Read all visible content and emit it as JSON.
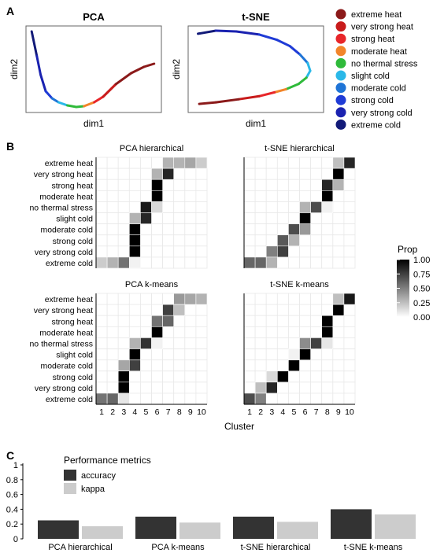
{
  "panels": {
    "a": "A",
    "b": "B",
    "c": "C"
  },
  "colors": {
    "extreme heat": "#8b1a1a",
    "very strong heat": "#c81b1b",
    "strong heat": "#e8262a",
    "moderate heat": "#f2852a",
    "no thermal stress": "#2fba3a",
    "slight cold": "#2ab8e8",
    "moderate cold": "#1f74d6",
    "strong cold": "#1f3bd6",
    "very strong cold": "#1a22b0",
    "extreme cold": "#121a78"
  },
  "stress_categories": [
    "extreme heat",
    "very strong heat",
    "strong heat",
    "moderate heat",
    "no thermal stress",
    "slight cold",
    "moderate cold",
    "strong cold",
    "very strong cold",
    "extreme cold"
  ],
  "chart_data": [
    {
      "type": "line",
      "title": "PCA",
      "xlabel": "dim1",
      "ylabel": "dim2",
      "note": "curve colored by thermal stress category",
      "points": [
        {
          "x": 0.02,
          "y": 0.97,
          "cat": "extreme cold"
        },
        {
          "x": 0.06,
          "y": 0.66,
          "cat": "extreme cold"
        },
        {
          "x": 0.09,
          "y": 0.42,
          "cat": "very strong cold"
        },
        {
          "x": 0.13,
          "y": 0.21,
          "cat": "very strong cold"
        },
        {
          "x": 0.18,
          "y": 0.12,
          "cat": "strong cold"
        },
        {
          "x": 0.23,
          "y": 0.07,
          "cat": "moderate cold"
        },
        {
          "x": 0.3,
          "y": 0.03,
          "cat": "slight cold"
        },
        {
          "x": 0.37,
          "y": 0.01,
          "cat": "no thermal stress"
        },
        {
          "x": 0.43,
          "y": 0.02,
          "cat": "no thermal stress"
        },
        {
          "x": 0.51,
          "y": 0.07,
          "cat": "moderate heat"
        },
        {
          "x": 0.58,
          "y": 0.14,
          "cat": "strong heat"
        },
        {
          "x": 0.68,
          "y": 0.3,
          "cat": "very strong heat"
        },
        {
          "x": 0.8,
          "y": 0.44,
          "cat": "extreme heat"
        },
        {
          "x": 0.9,
          "y": 0.52,
          "cat": "extreme heat"
        },
        {
          "x": 0.98,
          "y": 0.56,
          "cat": "extreme heat"
        }
      ]
    },
    {
      "type": "line",
      "title": "t-SNE",
      "xlabel": "dim1",
      "ylabel": "dim2",
      "note": "curve colored by thermal stress category",
      "points": [
        {
          "x": 0.04,
          "y": 0.95,
          "cat": "extreme cold"
        },
        {
          "x": 0.18,
          "y": 0.99,
          "cat": "extreme cold"
        },
        {
          "x": 0.34,
          "y": 0.98,
          "cat": "very strong cold"
        },
        {
          "x": 0.52,
          "y": 0.94,
          "cat": "very strong cold"
        },
        {
          "x": 0.66,
          "y": 0.87,
          "cat": "strong cold"
        },
        {
          "x": 0.76,
          "y": 0.79,
          "cat": "strong cold"
        },
        {
          "x": 0.84,
          "y": 0.68,
          "cat": "strong cold"
        },
        {
          "x": 0.9,
          "y": 0.57,
          "cat": "moderate cold"
        },
        {
          "x": 0.92,
          "y": 0.47,
          "cat": "slight cold"
        },
        {
          "x": 0.89,
          "y": 0.38,
          "cat": "slight cold"
        },
        {
          "x": 0.83,
          "y": 0.3,
          "cat": "no thermal stress"
        },
        {
          "x": 0.73,
          "y": 0.23,
          "cat": "no thermal stress"
        },
        {
          "x": 0.64,
          "y": 0.19,
          "cat": "moderate heat"
        },
        {
          "x": 0.52,
          "y": 0.14,
          "cat": "strong heat"
        },
        {
          "x": 0.36,
          "y": 0.1,
          "cat": "very strong heat"
        },
        {
          "x": 0.18,
          "y": 0.06,
          "cat": "extreme heat"
        },
        {
          "x": 0.05,
          "y": 0.04,
          "cat": "extreme heat"
        }
      ]
    },
    {
      "type": "heatmap",
      "title": "PCA hierarchical",
      "cells": [
        {
          "row": "extreme heat",
          "col": 7,
          "v": 0.3
        },
        {
          "row": "extreme heat",
          "col": 8,
          "v": 0.3
        },
        {
          "row": "extreme heat",
          "col": 9,
          "v": 0.35
        },
        {
          "row": "extreme heat",
          "col": 10,
          "v": 0.2
        },
        {
          "row": "very strong heat",
          "col": 6,
          "v": 0.3
        },
        {
          "row": "very strong heat",
          "col": 7,
          "v": 0.85
        },
        {
          "row": "strong heat",
          "col": 6,
          "v": 1.0
        },
        {
          "row": "moderate heat",
          "col": 6,
          "v": 1.0
        },
        {
          "row": "no thermal stress",
          "col": 5,
          "v": 0.9
        },
        {
          "row": "no thermal stress",
          "col": 6,
          "v": 0.15
        },
        {
          "row": "slight cold",
          "col": 4,
          "v": 0.3
        },
        {
          "row": "slight cold",
          "col": 5,
          "v": 0.85
        },
        {
          "row": "moderate cold",
          "col": 4,
          "v": 1.0
        },
        {
          "row": "strong cold",
          "col": 4,
          "v": 1.0
        },
        {
          "row": "very strong cold",
          "col": 4,
          "v": 1.0
        },
        {
          "row": "extreme cold",
          "col": 1,
          "v": 0.2
        },
        {
          "row": "extreme cold",
          "col": 2,
          "v": 0.3
        },
        {
          "row": "extreme cold",
          "col": 3,
          "v": 0.55
        },
        {
          "row": "extreme cold",
          "col": 4,
          "v": 0.05
        }
      ]
    },
    {
      "type": "heatmap",
      "title": "t-SNE hierarchical",
      "cells": [
        {
          "row": "extreme heat",
          "col": 9,
          "v": 0.25
        },
        {
          "row": "extreme heat",
          "col": 10,
          "v": 0.85
        },
        {
          "row": "very strong heat",
          "col": 9,
          "v": 1.0
        },
        {
          "row": "strong heat",
          "col": 8,
          "v": 0.85
        },
        {
          "row": "strong heat",
          "col": 9,
          "v": 0.3
        },
        {
          "row": "moderate heat",
          "col": 8,
          "v": 1.0
        },
        {
          "row": "no thermal stress",
          "col": 6,
          "v": 0.3
        },
        {
          "row": "no thermal stress",
          "col": 7,
          "v": 0.7
        },
        {
          "row": "no thermal stress",
          "col": 8,
          "v": 0.05
        },
        {
          "row": "slight cold",
          "col": 6,
          "v": 1.0
        },
        {
          "row": "moderate cold",
          "col": 5,
          "v": 0.7
        },
        {
          "row": "moderate cold",
          "col": 6,
          "v": 0.4
        },
        {
          "row": "strong cold",
          "col": 4,
          "v": 0.65
        },
        {
          "row": "strong cold",
          "col": 5,
          "v": 0.3
        },
        {
          "row": "very strong cold",
          "col": 3,
          "v": 0.5
        },
        {
          "row": "very strong cold",
          "col": 4,
          "v": 0.75
        },
        {
          "row": "extreme cold",
          "col": 1,
          "v": 0.6
        },
        {
          "row": "extreme cold",
          "col": 2,
          "v": 0.6
        },
        {
          "row": "extreme cold",
          "col": 3,
          "v": 0.3
        }
      ]
    },
    {
      "type": "heatmap",
      "title": "PCA k-means",
      "cells": [
        {
          "row": "extreme heat",
          "col": 8,
          "v": 0.4
        },
        {
          "row": "extreme heat",
          "col": 9,
          "v": 0.35
        },
        {
          "row": "extreme heat",
          "col": 10,
          "v": 0.3
        },
        {
          "row": "very strong heat",
          "col": 7,
          "v": 0.75
        },
        {
          "row": "very strong heat",
          "col": 8,
          "v": 0.25
        },
        {
          "row": "strong heat",
          "col": 6,
          "v": 0.55
        },
        {
          "row": "strong heat",
          "col": 7,
          "v": 0.6
        },
        {
          "row": "moderate heat",
          "col": 6,
          "v": 1.0
        },
        {
          "row": "no thermal stress",
          "col": 4,
          "v": 0.3
        },
        {
          "row": "no thermal stress",
          "col": 5,
          "v": 0.8
        },
        {
          "row": "no thermal stress",
          "col": 6,
          "v": 0.05
        },
        {
          "row": "slight cold",
          "col": 4,
          "v": 1.0
        },
        {
          "row": "moderate cold",
          "col": 3,
          "v": 0.35
        },
        {
          "row": "moderate cold",
          "col": 4,
          "v": 0.75
        },
        {
          "row": "strong cold",
          "col": 3,
          "v": 1.0
        },
        {
          "row": "very strong cold",
          "col": 3,
          "v": 1.0
        },
        {
          "row": "extreme cold",
          "col": 1,
          "v": 0.55
        },
        {
          "row": "extreme cold",
          "col": 2,
          "v": 0.6
        },
        {
          "row": "extreme cold",
          "col": 3,
          "v": 0.1
        }
      ]
    },
    {
      "type": "heatmap",
      "title": "t-SNE k-means",
      "cells": [
        {
          "row": "extreme heat",
          "col": 9,
          "v": 0.25
        },
        {
          "row": "extreme heat",
          "col": 10,
          "v": 0.9
        },
        {
          "row": "very strong heat",
          "col": 9,
          "v": 1.0
        },
        {
          "row": "strong heat",
          "col": 8,
          "v": 1.0
        },
        {
          "row": "moderate heat",
          "col": 8,
          "v": 1.0
        },
        {
          "row": "no thermal stress",
          "col": 6,
          "v": 0.45
        },
        {
          "row": "no thermal stress",
          "col": 7,
          "v": 0.75
        },
        {
          "row": "no thermal stress",
          "col": 8,
          "v": 0.1
        },
        {
          "row": "slight cold",
          "col": 5,
          "v": 0.05
        },
        {
          "row": "slight cold",
          "col": 6,
          "v": 1.0
        },
        {
          "row": "moderate cold",
          "col": 5,
          "v": 1.0
        },
        {
          "row": "strong cold",
          "col": 3,
          "v": 0.15
        },
        {
          "row": "strong cold",
          "col": 4,
          "v": 1.0
        },
        {
          "row": "very strong cold",
          "col": 2,
          "v": 0.25
        },
        {
          "row": "very strong cold",
          "col": 3,
          "v": 0.85
        },
        {
          "row": "extreme cold",
          "col": 1,
          "v": 0.7
        },
        {
          "row": "extreme cold",
          "col": 2,
          "v": 0.5
        }
      ]
    },
    {
      "type": "bar",
      "legend_title": "Performance metrics",
      "categories": [
        "PCA hierarchical",
        "PCA k-means",
        "t-SNE hierarchical",
        "t-SNE k-means"
      ],
      "series": [
        {
          "name": "accuracy",
          "color": "#333333",
          "values": [
            0.25,
            0.3,
            0.3,
            0.4
          ]
        },
        {
          "name": "kappa",
          "color": "#cccccc",
          "values": [
            0.17,
            0.22,
            0.23,
            0.33
          ]
        }
      ],
      "ylim": [
        0,
        1
      ],
      "yticks": [
        "0",
        "0.2",
        "0.4",
        "0.6",
        "0.8",
        "1"
      ]
    }
  ],
  "heatmap_axis": {
    "xlabel": "Cluster",
    "xticks": [
      "1",
      "2",
      "3",
      "4",
      "5",
      "6",
      "7",
      "8",
      "9",
      "10"
    ]
  },
  "colorbar": {
    "title": "Prop",
    "ticks": [
      "1.00",
      "0.75",
      "0.50",
      "0.25",
      "0.00"
    ]
  }
}
